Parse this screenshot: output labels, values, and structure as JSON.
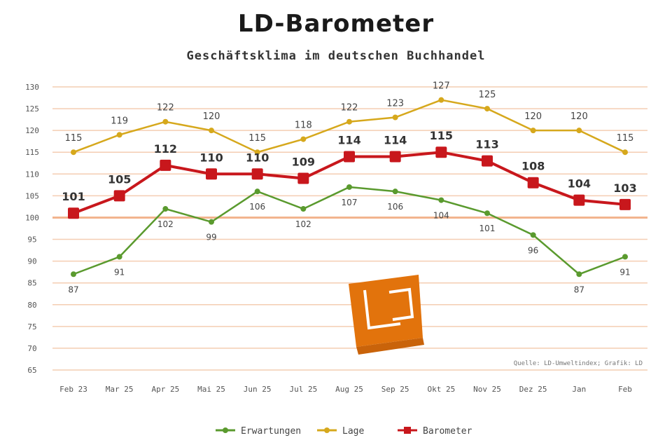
{
  "chart_data": {
    "type": "line",
    "title": "LD-Barometer",
    "subtitle": "Geschäftsklima im deutschen Buchhandel",
    "categories": [
      "Feb 23",
      "Mar 25",
      "Apr 25",
      "Mai 25",
      "Jun 25",
      "Jul 25",
      "Aug 25",
      "Sep 25",
      "Okt 25",
      "Nov 25",
      "Dez 25",
      "Jan",
      "Feb"
    ],
    "series": [
      {
        "name": "Erwartungen",
        "color": "#5a9a2e",
        "values": [
          87,
          91,
          102,
          99,
          106,
          102,
          107,
          106,
          104,
          101,
          96,
          87,
          91
        ],
        "labels": [
          "87",
          "91",
          "102",
          "99",
          "106",
          "102",
          "107",
          "106",
          "104",
          "101",
          "96",
          "87",
          "91"
        ]
      },
      {
        "name": "Lage",
        "color": "#d6a81c",
        "values": [
          115,
          119,
          122,
          120,
          115,
          118,
          122,
          123,
          127,
          125,
          120,
          120,
          115
        ],
        "labels": [
          "115",
          "119",
          "122",
          "120",
          "115",
          "118",
          "122",
          "123",
          "127",
          "125",
          "120",
          "120",
          "115"
        ]
      },
      {
        "name": "Barometer",
        "color": "#c8171c",
        "values": [
          101,
          105,
          112,
          110,
          110,
          109,
          114,
          114,
          115,
          113,
          108,
          104,
          103
        ],
        "labels": [
          "101",
          "105",
          "112",
          "110",
          "110",
          "109",
          "114",
          "114",
          "115",
          "113",
          "108",
          "104",
          "103"
        ]
      }
    ],
    "ylim": [
      65,
      130
    ],
    "yticks": [
      "130",
      "125",
      "120",
      "115",
      "110",
      "105",
      "100",
      "95",
      "90",
      "85",
      "80",
      "75",
      "70",
      "65"
    ],
    "reference_line": 100,
    "source": "Quelle: LD-Umweltindex; Grafik: LD",
    "legend_position": "bottom",
    "grid": true
  },
  "colors": {
    "grid": "#f4cdb2",
    "reference": "#f2b48e",
    "logo": "#e2730c"
  }
}
